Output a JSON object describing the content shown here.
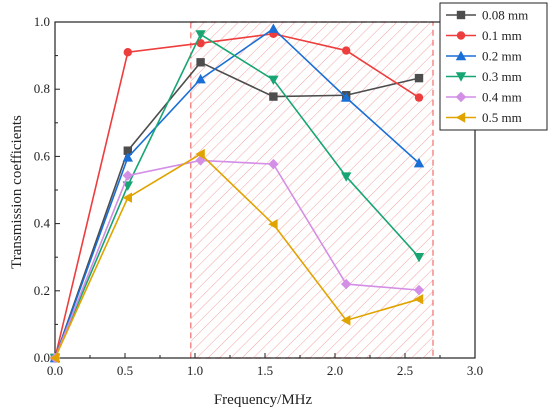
{
  "chart_data": {
    "type": "line",
    "title": "",
    "xlabel": "Frequency/MHz",
    "ylabel": "Transmission coefficients",
    "xlim": [
      0.0,
      3.0
    ],
    "ylim": [
      0.0,
      1.0
    ],
    "x_ticks": [
      "0.0",
      "0.5",
      "1.0",
      "1.5",
      "2.0",
      "2.5",
      "3.0"
    ],
    "y_ticks": [
      "0.0",
      "0.2",
      "0.4",
      "0.6",
      "0.8",
      "1.0"
    ],
    "grid": false,
    "legend_position": "top-right",
    "highlight_region": {
      "x": [
        0.97,
        2.7
      ],
      "y": [
        0.0,
        1.0
      ],
      "color": "#f26d6d",
      "style": "dashed border, diagonal hatch"
    },
    "x": [
      0.0,
      0.52,
      1.04,
      1.56,
      2.08,
      2.6
    ],
    "series": [
      {
        "name": "0.08 mm",
        "color": "#4d4d4d",
        "marker": "square",
        "values": [
          0.0,
          0.617,
          0.88,
          0.778,
          0.782,
          0.833
        ]
      },
      {
        "name": "0.1 mm",
        "color": "#ee3d3d",
        "marker": "circle",
        "values": [
          0.0,
          0.91,
          0.937,
          0.965,
          0.915,
          0.775
        ]
      },
      {
        "name": "0.2 mm",
        "color": "#1a6fd6",
        "marker": "triangle-up",
        "values": [
          0.0,
          0.597,
          0.83,
          0.98,
          0.775,
          0.58
        ]
      },
      {
        "name": "0.3 mm",
        "color": "#17a673",
        "marker": "triangle-down",
        "values": [
          0.0,
          0.513,
          0.963,
          0.828,
          0.54,
          0.3
        ]
      },
      {
        "name": "0.4 mm",
        "color": "#d38ee6",
        "marker": "diamond",
        "values": [
          0.0,
          0.543,
          0.588,
          0.577,
          0.22,
          0.202
        ]
      },
      {
        "name": "0.5 mm",
        "color": "#e0a300",
        "marker": "triangle-left",
        "values": [
          0.0,
          0.477,
          0.607,
          0.398,
          0.112,
          0.175
        ]
      }
    ]
  }
}
